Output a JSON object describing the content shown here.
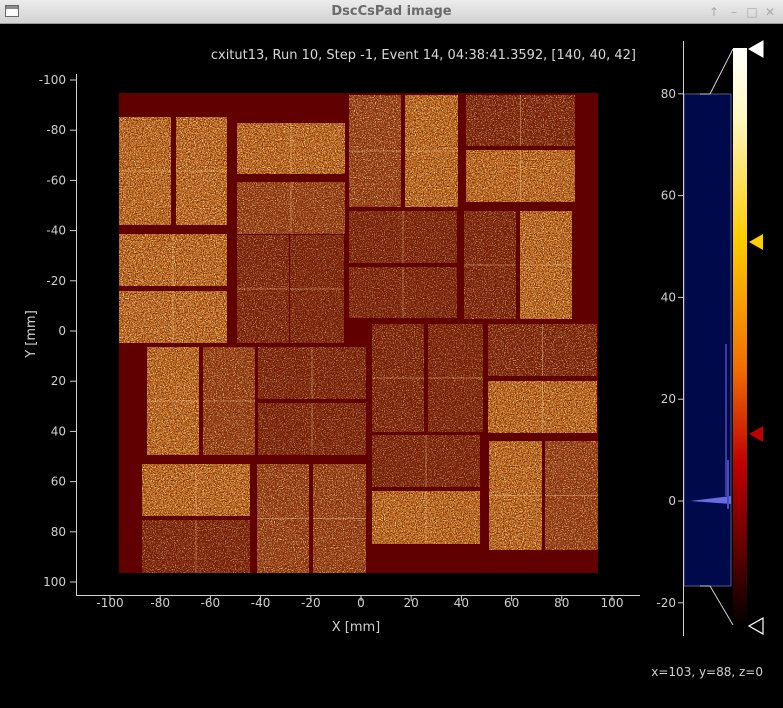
{
  "window": {
    "title": "DscCsPad image",
    "buttons": [
      "↑",
      "–",
      "□",
      "✕"
    ]
  },
  "image": {
    "header": "cxitut13, Run 10, Step -1, Event 14, 04:38:41.3592, [140, 40, 42]",
    "xlabel": "X [mm]",
    "ylabel": "Y [mm]",
    "x_ticks": [
      "-100",
      "-80",
      "-60",
      "-40",
      "-20",
      "0",
      "20",
      "40",
      "60",
      "80",
      "100"
    ],
    "y_ticks": [
      "-100",
      "-80",
      "-60",
      "-40",
      "-20",
      "0",
      "20",
      "40",
      "60",
      "80",
      "100"
    ],
    "colormap": "hot"
  },
  "colorbar": {
    "ticks": [
      "80",
      "60",
      "40",
      "20",
      "0",
      "-20"
    ],
    "marker_colors": [
      "#ffffff",
      "#ffd000",
      "#c00000",
      "#000000"
    ],
    "histogram_color": "#000a4a"
  },
  "status": {
    "cursor_readout": "x=103, y=88, z=0"
  }
}
